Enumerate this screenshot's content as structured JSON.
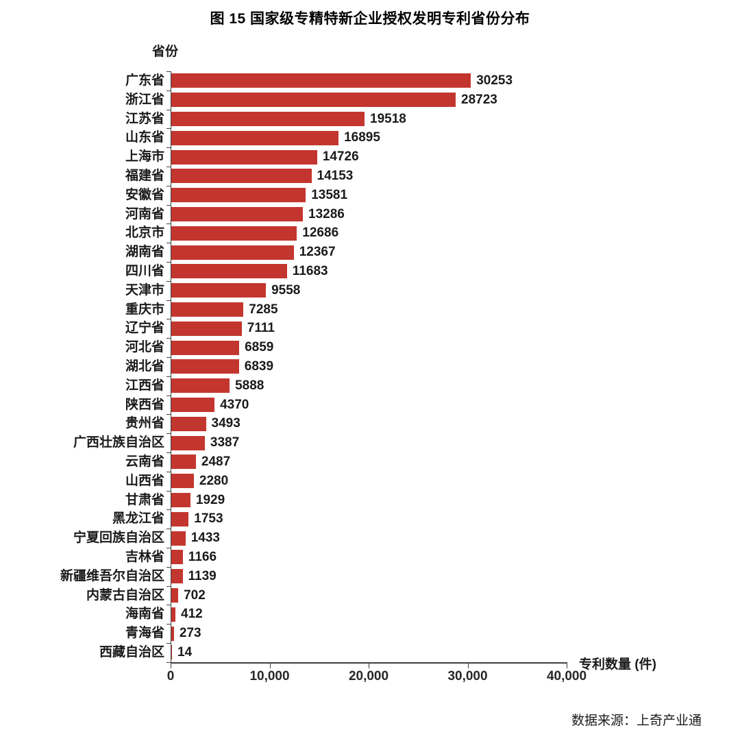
{
  "page": {
    "title": "图 15 国家级专精特新企业授权发明专利省份分布",
    "source": "数据来源：上奇产业通"
  },
  "chart_data": {
    "type": "bar",
    "orientation": "horizontal",
    "title": "图 15 国家级专精特新企业授权发明专利省份分布",
    "y_axis_label": "省份",
    "x_axis_label": "专利数量 (件)",
    "categories": [
      "广东省",
      "浙江省",
      "江苏省",
      "山东省",
      "上海市",
      "福建省",
      "安徽省",
      "河南省",
      "北京市",
      "湖南省",
      "四川省",
      "天津市",
      "重庆市",
      "辽宁省",
      "河北省",
      "湖北省",
      "江西省",
      "陕西省",
      "贵州省",
      "广西壮族自治区",
      "云南省",
      "山西省",
      "甘肃省",
      "黑龙江省",
      "宁夏回族自治区",
      "吉林省",
      "新疆维吾尔自治区",
      "内蒙古自治区",
      "海南省",
      "青海省",
      "西藏自治区"
    ],
    "values": [
      30253,
      28723,
      19518,
      16895,
      14726,
      14153,
      13581,
      13286,
      12686,
      12367,
      11683,
      9558,
      7285,
      7111,
      6859,
      6839,
      5888,
      4370,
      3493,
      3387,
      2487,
      2280,
      1929,
      1753,
      1433,
      1166,
      1139,
      702,
      412,
      273,
      14
    ],
    "xlim": [
      0,
      40000
    ],
    "x_tick_values": [
      0,
      10000,
      20000,
      30000,
      40000
    ],
    "x_tick_labels": [
      "0",
      "10,000",
      "20,000",
      "30,000",
      "40,000"
    ],
    "grid": "off",
    "legend": "none",
    "bar_color": "#c3362f",
    "axis_color": "#3f3f3f",
    "value_label_color": "#1a1a1a"
  }
}
